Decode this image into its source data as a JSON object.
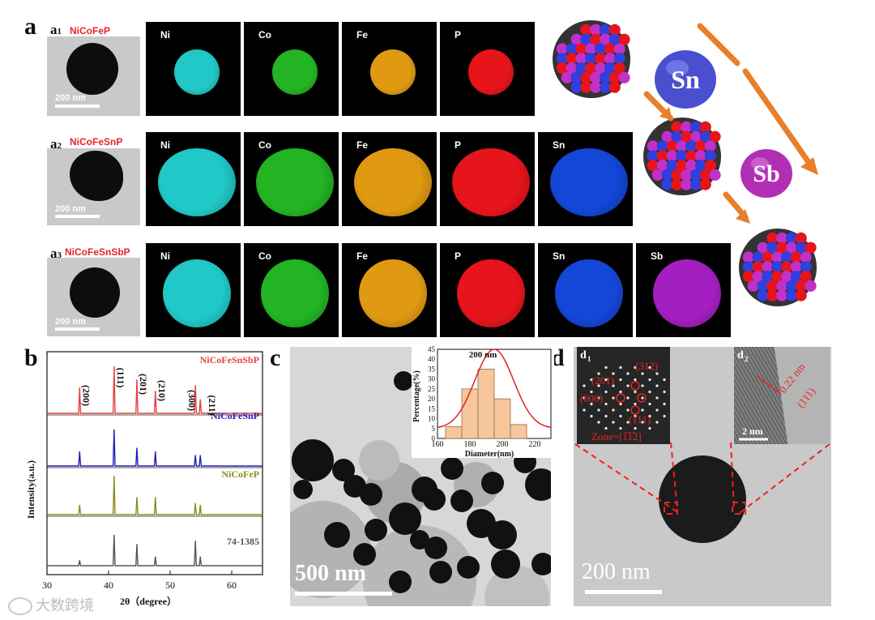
{
  "panel_labels": {
    "a": "a",
    "b": "b",
    "c": "c",
    "d": "d"
  },
  "row_a1": {
    "sub": "a",
    "idx": "1",
    "material": "NiCoFeP",
    "scale": "200 nm",
    "maps": [
      {
        "el": "Ni",
        "color": "#21c8c8"
      },
      {
        "el": "Co",
        "color": "#23b423"
      },
      {
        "el": "Fe",
        "color": "#e09a12"
      },
      {
        "el": "P",
        "color": "#e8141c"
      }
    ]
  },
  "row_a2": {
    "sub": "a",
    "idx": "2",
    "material": "NiCoFeSnP",
    "scale": "200 nm",
    "maps": [
      {
        "el": "Ni",
        "color": "#21c8c8"
      },
      {
        "el": "Co",
        "color": "#23b423"
      },
      {
        "el": "Fe",
        "color": "#e09a12"
      },
      {
        "el": "P",
        "color": "#e8141c"
      },
      {
        "el": "Sn",
        "color": "#1446d8"
      }
    ]
  },
  "row_a3": {
    "sub": "a",
    "idx": "3",
    "material": "NiCoFeSnSbP",
    "scale": "200 nm",
    "maps": [
      {
        "el": "Ni",
        "color": "#21c8c8"
      },
      {
        "el": "Co",
        "color": "#23b423"
      },
      {
        "el": "Fe",
        "color": "#e09a12"
      },
      {
        "el": "P",
        "color": "#e8141c"
      },
      {
        "el": "Sn",
        "color": "#1446d8"
      },
      {
        "el": "Sb",
        "color": "#a31fc1"
      }
    ]
  },
  "schematic": {
    "sn": "Sn",
    "sb": "Sb",
    "arrow_color": "#e87f2b"
  },
  "panel_c": {
    "scale": "500 nm"
  },
  "panel_d": {
    "d1": "d",
    "d1_idx": "1",
    "d2": "d",
    "d2_idx": "2",
    "scale": "200 nm",
    "spots": [
      "(312)",
      "(201)",
      "(000)",
      "(111)"
    ],
    "zone": "Zone=[1̅1̅2]",
    "lattice": "0.22 nm",
    "plane": "(111)",
    "hrtem_scale": "2 nm"
  },
  "chart_data": [
    {
      "type": "line",
      "title": "",
      "xlabel": "2θ（degree）",
      "ylabel": "Intensity(a.u.)",
      "xlim": [
        30,
        65
      ],
      "xticks": [
        30,
        40,
        50,
        60
      ],
      "series": [
        {
          "name": "NiCoFeSnSbP",
          "color": "#e4433f",
          "peaks": [
            [
              35.3,
              0.55
            ],
            [
              40.9,
              1.0
            ],
            [
              44.6,
              0.72
            ],
            [
              47.6,
              0.48
            ],
            [
              54.1,
              0.6
            ],
            [
              54.9,
              0.3
            ]
          ]
        },
        {
          "name": "NiCoFeSnP",
          "color": "#1f1fb4",
          "peaks": [
            [
              35.3,
              0.4
            ],
            [
              40.9,
              1.0
            ],
            [
              44.6,
              0.5
            ],
            [
              47.6,
              0.4
            ],
            [
              54.1,
              0.3
            ],
            [
              54.9,
              0.3
            ]
          ]
        },
        {
          "name": "NiCoFeP",
          "color": "#8c8c1c",
          "peaks": [
            [
              35.3,
              0.25
            ],
            [
              40.9,
              1.0
            ],
            [
              44.6,
              0.45
            ],
            [
              47.6,
              0.45
            ],
            [
              54.1,
              0.3
            ],
            [
              54.9,
              0.25
            ]
          ]
        },
        {
          "name": "74-1385",
          "color": "#555555",
          "peaks": [
            [
              35.3,
              0.12
            ],
            [
              40.9,
              0.68
            ],
            [
              44.6,
              0.48
            ],
            [
              47.6,
              0.2
            ],
            [
              54.1,
              0.55
            ],
            [
              54.9,
              0.2
            ]
          ]
        }
      ],
      "annotations": [
        "(200)",
        "(111)",
        "(201)",
        "(210)",
        "(300)",
        "(211)"
      ]
    },
    {
      "type": "bar",
      "title": "200 nm",
      "xlabel": "Diameter(nm)",
      "ylabel": "Percentage(%)",
      "categories": [
        170,
        180,
        190,
        200,
        210
      ],
      "values": [
        6,
        25,
        35,
        20,
        7
      ],
      "ylim": [
        0,
        45
      ],
      "xlim": [
        160,
        230
      ],
      "xticks": [
        160,
        180,
        200,
        220
      ],
      "yticks": [
        0,
        5,
        10,
        15,
        20,
        25,
        30,
        35,
        40,
        45
      ],
      "fit": {
        "type": "gaussian",
        "mu": 195,
        "sigma": 12,
        "peak": 40
      }
    }
  ],
  "watermark": "大数跨境"
}
